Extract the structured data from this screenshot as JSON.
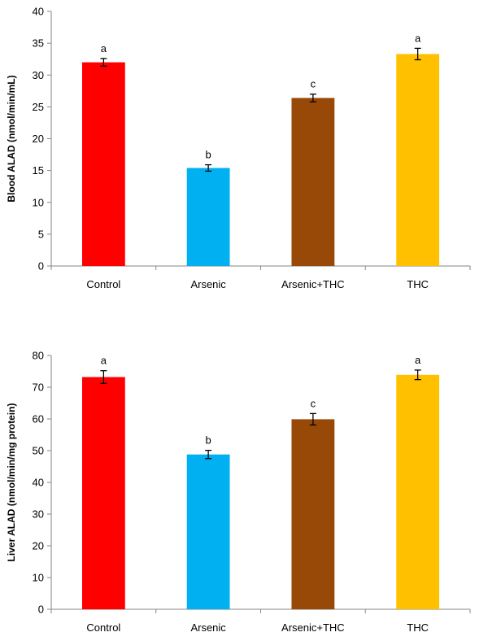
{
  "chart_data": [
    {
      "type": "bar",
      "categories": [
        "Control",
        "Arsenic",
        "Arsenic+THC",
        "THC"
      ],
      "values": [
        32.0,
        15.4,
        26.4,
        33.3
      ],
      "errors": [
        0.6,
        0.5,
        0.6,
        0.9
      ],
      "significance": [
        "a",
        "b",
        "c",
        "a"
      ],
      "colors": [
        "#ff0000",
        "#00b0f0",
        "#984807",
        "#ffc000"
      ],
      "ylabel": "Blood ALAD (nmol/min/mL)",
      "ylim": [
        0,
        40
      ],
      "yticks": [
        0,
        5,
        10,
        15,
        20,
        25,
        30,
        35,
        40
      ],
      "grid": false,
      "legend": "none"
    },
    {
      "type": "bar",
      "categories": [
        "Control",
        "Arsenic",
        "Arsenic+THC",
        "THC"
      ],
      "values": [
        73.2,
        48.8,
        59.9,
        73.9
      ],
      "errors": [
        2.0,
        1.3,
        1.8,
        1.5
      ],
      "significance": [
        "a",
        "b",
        "c",
        "a"
      ],
      "colors": [
        "#ff0000",
        "#00b0f0",
        "#984807",
        "#ffc000"
      ],
      "ylabel": "Liver ALAD (nmol/min/mg protein)",
      "ylim": [
        0,
        80
      ],
      "yticks": [
        0,
        10,
        20,
        30,
        40,
        50,
        60,
        70,
        80
      ],
      "grid": false,
      "legend": "none"
    }
  ]
}
